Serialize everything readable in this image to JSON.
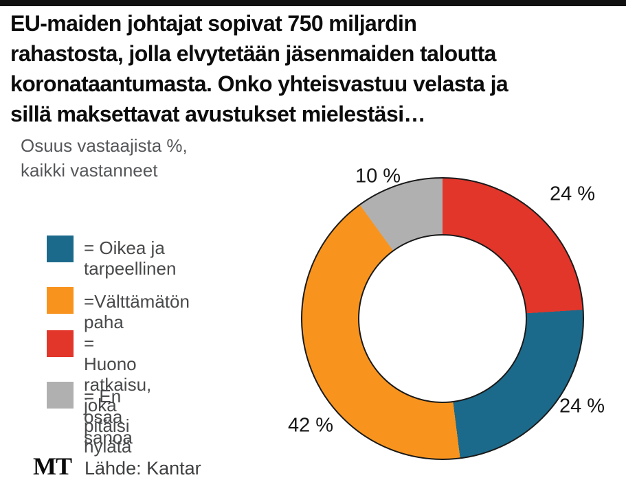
{
  "header": {
    "title": "EU-maiden johtajat sopivat 750 miljardin\nrahastosta, jolla elvytetään jäsenmaiden taloutta\nkoronataantumasta. Onko yhteisvastuu velasta ja\nsillä maksettavat avustukset mielestäsi…",
    "subtitle": "Osuus vastaajista %,\nkaikki vastanneet"
  },
  "legend": {
    "items": [
      {
        "label": "= Oikea ja\ntarpeellinen",
        "color": "#1c6a8b"
      },
      {
        "label": "=Välttämätön paha",
        "color": "#f8941e"
      },
      {
        "label": "= Huono ratkaisu,\njoka pitäisi hylätä",
        "color": "#e2362b"
      },
      {
        "label": "= En osaa sanoa",
        "color": "#b1b0b1"
      }
    ]
  },
  "chart_data": {
    "type": "pie",
    "subtype": "donut",
    "title": "Osuus vastaajista %, kaikki vastanneet",
    "unit": "%",
    "start_angle_deg": 0,
    "direction": "clockwise",
    "legend_position": "left",
    "slices": [
      {
        "label": "Huono ratkaisu, joka pitäisi hylätä",
        "value": 24,
        "data_label": "24 %",
        "color": "#e2362b"
      },
      {
        "label": "Oikea ja tarpeellinen",
        "value": 24,
        "data_label": "24 %",
        "color": "#1c6a8b"
      },
      {
        "label": "Välttämätön paha",
        "value": 42,
        "data_label": "42 %",
        "color": "#f8941e"
      },
      {
        "label": "En osaa sanoa",
        "value": 10,
        "data_label": "10 %",
        "color": "#b1b0b1"
      }
    ]
  },
  "footer": {
    "logo": "MT",
    "source": "Lähde: Kantar"
  },
  "colors": {
    "top_bar": "#111111",
    "outline": "#1a1a1a",
    "background": "#ffffff"
  }
}
